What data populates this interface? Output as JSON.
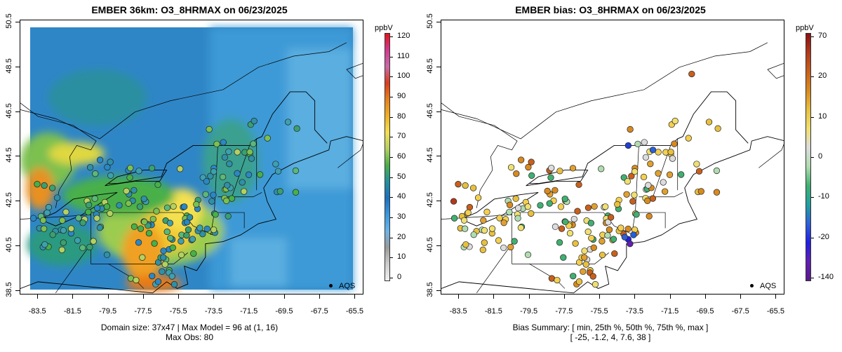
{
  "left_panel": {
    "title": "EMBER 36km: O3_8HRMAX on 06/23/2025",
    "footer_line1": "Domain size: 37x47 | Max Model = 96 at (1, 16)",
    "footer_line2": "Max Obs: 80",
    "colorbar_unit": "ppbV",
    "colorbar_labels": [
      "120",
      "110",
      "100",
      "90",
      "80",
      "70",
      "60",
      "50",
      "40",
      "30",
      "20",
      "10",
      "0"
    ],
    "colorbar_colors": [
      "#e8101a",
      "#d2388f",
      "#c86aa6",
      "#dc3b1c",
      "#e8801a",
      "#f0b020",
      "#f4e050",
      "#b4d060",
      "#48b048",
      "#2090a0",
      "#1c70c0",
      "#3898e0",
      "#6ab4e8",
      "#9a9a9a",
      "#cccccc",
      "#f2f2f2"
    ],
    "legend_label": "AQS"
  },
  "right_panel": {
    "title": "EMBER bias: O3_8HRMAX on 06/23/2025",
    "footer_line1": "Bias Summary: [ min, 25th %, 50th %, 75th %, max ]",
    "footer_line2": "[ -25,   -1.2,   4,   7.6,   38 ]",
    "colorbar_unit": "ppbV",
    "colorbar_labels": [
      "70",
      "20",
      "10",
      "0",
      "-10",
      "-20",
      "-140"
    ],
    "colorbar_colors": [
      "#8a1010",
      "#b03a1c",
      "#c8601c",
      "#d88a20",
      "#e8c040",
      "#f0e070",
      "#dcdcdc",
      "#b0dcb0",
      "#40b070",
      "#20a0a0",
      "#3060d8",
      "#2020e0",
      "#6020b0",
      "#5a1a8a"
    ],
    "legend_label": "AQS"
  },
  "axes": {
    "x_ticks": [
      "-83.5",
      "-81.5",
      "-79.5",
      "-77.5",
      "-75.5",
      "-73.5",
      "-71.5",
      "-69.5",
      "-67.5",
      "-65.5"
    ],
    "y_ticks": [
      "50.5",
      "48.5",
      "46.5",
      "44.5",
      "42.5",
      "40.5",
      "38.5"
    ],
    "xlim": [
      -84.5,
      -65.0
    ],
    "ylim": [
      38.3,
      50.6
    ]
  }
}
